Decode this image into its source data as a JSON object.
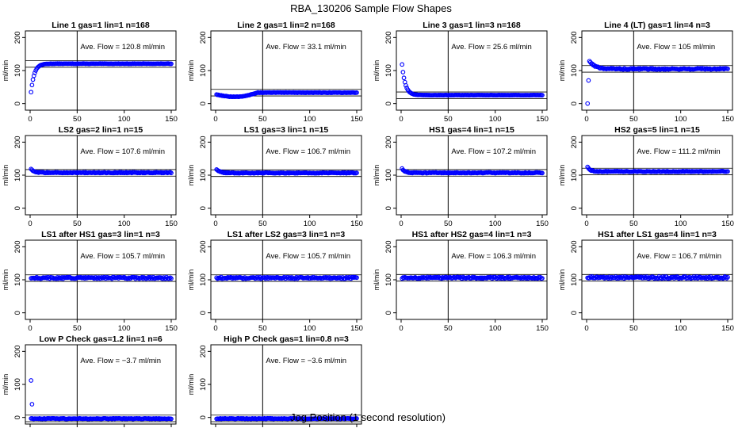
{
  "title": "RBA_130206  Sample Flow Shapes",
  "xlabel": "Jog Position (1 second resolution)",
  "colors": {
    "points": "#0000ff",
    "lines": "#000000",
    "background": "#ffffff"
  },
  "chart_data": [
    {
      "type": "scatter",
      "title": "Line 1 gas=1 lin=1 n=168",
      "ylabel": "ml/min",
      "annotation": "Ave. Flow =  120.8  ml/min",
      "xlim": [
        0,
        150
      ],
      "ylim": [
        -20,
        220
      ],
      "xticks": [
        "0",
        "50",
        "100",
        "150"
      ],
      "yticks": [
        "0",
        "100",
        "200"
      ],
      "vline": 50,
      "hlines": [
        110,
        130
      ],
      "shape": "rise",
      "start": 35,
      "level": 120.8,
      "tau": 3.5,
      "noise": 0.5
    },
    {
      "type": "scatter",
      "title": "Line 2 gas=1 lin=2 n=168",
      "ylabel": "ml/min",
      "annotation": "Ave. Flow =  33.1  ml/min",
      "xlim": [
        0,
        150
      ],
      "ylim": [
        -20,
        220
      ],
      "xticks": [
        "0",
        "50",
        "100",
        "150"
      ],
      "yticks": [
        "0",
        "100",
        "200"
      ],
      "vline": 50,
      "hlines": [
        23,
        43
      ],
      "shape": "dip",
      "start": 28,
      "level": 33.1,
      "noise": 0.6
    },
    {
      "type": "scatter",
      "title": "Line 3 gas=1 lin=3 n=168",
      "ylabel": "ml/min",
      "annotation": "Ave. Flow =  25.6  ml/min",
      "xlim": [
        0,
        150
      ],
      "ylim": [
        -20,
        220
      ],
      "xticks": [
        "0",
        "50",
        "100",
        "150"
      ],
      "yticks": [
        "0",
        "100",
        "200"
      ],
      "vline": 50,
      "hlines": [
        15,
        35
      ],
      "shape": "decay",
      "start": 118,
      "level": 25.6,
      "tau": 3.5,
      "noise": 0.4
    },
    {
      "type": "scatter",
      "title": "Line 4 (LT) gas=1 lin=4 n=3",
      "ylabel": "ml/min",
      "annotation": "Ave. Flow =  105  ml/min",
      "xlim": [
        0,
        150
      ],
      "ylim": [
        -20,
        220
      ],
      "xticks": [
        "0",
        "50",
        "100",
        "150"
      ],
      "yticks": [
        "0",
        "100",
        "200"
      ],
      "vline": 50,
      "hlines": [
        95,
        115
      ],
      "shape": "spikefirst",
      "start": 128,
      "level": 105,
      "tau": 6,
      "noise": 2,
      "extras": [
        [
          1,
          0
        ],
        [
          2,
          70
        ]
      ]
    },
    {
      "type": "scatter",
      "title": "LS2 gas=2 lin=1 n=15",
      "ylabel": "ml/min",
      "annotation": "Ave. Flow =  107.6  ml/min",
      "xlim": [
        0,
        150
      ],
      "ylim": [
        -20,
        220
      ],
      "xticks": [
        "0",
        "50",
        "100",
        "150"
      ],
      "yticks": [
        "0",
        "100",
        "200"
      ],
      "vline": 50,
      "hlines": [
        97,
        117
      ],
      "shape": "decay",
      "start": 118,
      "level": 107.6,
      "tau": 3,
      "noise": 1.2
    },
    {
      "type": "scatter",
      "title": "LS1 gas=3 lin=1 n=15",
      "ylabel": "ml/min",
      "annotation": "Ave. Flow =  106.7  ml/min",
      "xlim": [
        0,
        150
      ],
      "ylim": [
        -20,
        220
      ],
      "xticks": [
        "0",
        "50",
        "100",
        "150"
      ],
      "yticks": [
        "0",
        "100",
        "200"
      ],
      "vline": 50,
      "hlines": [
        96,
        116
      ],
      "shape": "decay",
      "start": 118,
      "level": 106.7,
      "tau": 3,
      "noise": 1.2
    },
    {
      "type": "scatter",
      "title": "HS1 gas=4 lin=1 n=15",
      "ylabel": "ml/min",
      "annotation": "Ave. Flow =  107.2  ml/min",
      "xlim": [
        0,
        150
      ],
      "ylim": [
        -20,
        220
      ],
      "xticks": [
        "0",
        "50",
        "100",
        "150"
      ],
      "yticks": [
        "0",
        "100",
        "200"
      ],
      "vline": 50,
      "hlines": [
        97,
        117
      ],
      "shape": "decay",
      "start": 120,
      "level": 107.2,
      "tau": 3,
      "noise": 1.2
    },
    {
      "type": "scatter",
      "title": "HS2 gas=5 lin=1 n=15",
      "ylabel": "ml/min",
      "annotation": "Ave. Flow =  111.2  ml/min",
      "xlim": [
        0,
        150
      ],
      "ylim": [
        -20,
        220
      ],
      "xticks": [
        "0",
        "50",
        "100",
        "150"
      ],
      "yticks": [
        "0",
        "100",
        "200"
      ],
      "vline": 50,
      "hlines": [
        101,
        121
      ],
      "shape": "decay",
      "start": 124,
      "level": 111.2,
      "tau": 3,
      "noise": 1.2
    },
    {
      "type": "scatter",
      "title": "LS1 after HS1 gas=3 lin=1 n=3",
      "ylabel": "ml/min",
      "annotation": "Ave. Flow =  105.7  ml/min",
      "xlim": [
        0,
        150
      ],
      "ylim": [
        -20,
        220
      ],
      "xticks": [
        "0",
        "50",
        "100",
        "150"
      ],
      "yticks": [
        "0",
        "100",
        "200"
      ],
      "vline": 50,
      "hlines": [
        95,
        115
      ],
      "shape": "flat",
      "start": 105.7,
      "level": 105.7,
      "noise": 2.5
    },
    {
      "type": "scatter",
      "title": "LS1 after LS2 gas=3 lin=1 n=3",
      "ylabel": "ml/min",
      "annotation": "Ave. Flow =  105.7  ml/min",
      "xlim": [
        0,
        150
      ],
      "ylim": [
        -20,
        220
      ],
      "xticks": [
        "0",
        "50",
        "100",
        "150"
      ],
      "yticks": [
        "0",
        "100",
        "200"
      ],
      "vline": 50,
      "hlines": [
        95,
        115
      ],
      "shape": "flat",
      "start": 105.7,
      "level": 105.7,
      "noise": 2.5
    },
    {
      "type": "scatter",
      "title": "HS1 after HS2 gas=4 lin=1 n=3",
      "ylabel": "ml/min",
      "annotation": "Ave. Flow =  106.3  ml/min",
      "xlim": [
        0,
        150
      ],
      "ylim": [
        -20,
        220
      ],
      "xticks": [
        "0",
        "50",
        "100",
        "150"
      ],
      "yticks": [
        "0",
        "100",
        "200"
      ],
      "vline": 50,
      "hlines": [
        96,
        116
      ],
      "shape": "flat",
      "start": 106.3,
      "level": 106.3,
      "noise": 2.5
    },
    {
      "type": "scatter",
      "title": "HS1 after LS1 gas=4 lin=1 n=3",
      "ylabel": "ml/min",
      "annotation": "Ave. Flow =  106.7  ml/min",
      "xlim": [
        0,
        150
      ],
      "ylim": [
        -20,
        220
      ],
      "xticks": [
        "0",
        "50",
        "100",
        "150"
      ],
      "yticks": [
        "0",
        "100",
        "200"
      ],
      "vline": 50,
      "hlines": [
        96,
        116
      ],
      "shape": "flat",
      "start": 106.7,
      "level": 106.7,
      "noise": 3
    },
    {
      "type": "scatter",
      "title": "Low P Check gas=1.2 lin=1 n=6",
      "ylabel": "ml/min",
      "annotation": "Ave. Flow =  −3.7  ml/min",
      "xlim": [
        0,
        150
      ],
      "ylim": [
        -20,
        220
      ],
      "xticks": [
        "0",
        "50",
        "100",
        "150"
      ],
      "yticks": [
        "0",
        "100",
        "200"
      ],
      "vline": 50,
      "hlines": [
        -13,
        7
      ],
      "shape": "flat",
      "start": -3.7,
      "level": -3.7,
      "noise": 1,
      "extras": [
        [
          1,
          112
        ],
        [
          2,
          40
        ]
      ]
    },
    {
      "type": "scatter",
      "title": "High P Check gas=1 lin=0.8 n=3",
      "ylabel": "ml/min",
      "annotation": "Ave. Flow =  −3.6  ml/min",
      "xlim": [
        0,
        150
      ],
      "ylim": [
        -20,
        220
      ],
      "xticks": [
        "0",
        "50",
        "100",
        "150"
      ],
      "yticks": [
        "0",
        "100",
        "200"
      ],
      "vline": 50,
      "hlines": [
        -13,
        7
      ],
      "shape": "flat",
      "start": -3.6,
      "level": -3.6,
      "noise": 1
    }
  ]
}
